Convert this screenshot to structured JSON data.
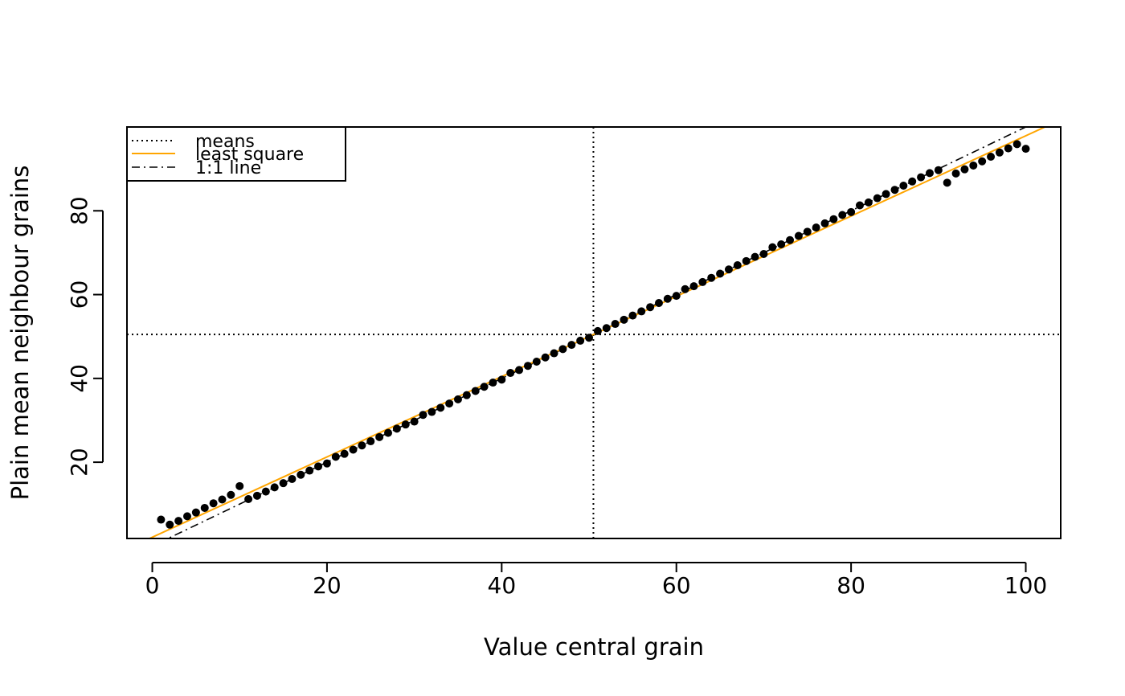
{
  "chart_data": {
    "type": "scatter",
    "xlabel": "Value central grain",
    "ylabel": "Plain mean neighbour grains",
    "xlim": [
      -2.9,
      104.0
    ],
    "ylim": [
      1.8,
      100.0
    ],
    "x_ticks": [
      0,
      20,
      40,
      60,
      80,
      100
    ],
    "y_ticks": [
      20,
      40,
      60,
      80
    ],
    "grid": false,
    "legend": {
      "position": "top-left",
      "items": [
        {
          "label": "means",
          "style": "dotted",
          "color": "#000000"
        },
        {
          "label": "least square",
          "style": "solid",
          "color": "#FFA500"
        },
        {
          "label": "1:1 line",
          "style": "dashdot",
          "color": "#000000"
        }
      ]
    },
    "colors": {
      "points": "#000000",
      "least_square": "#FFA500",
      "means": "#000000",
      "identity": "#000000"
    },
    "means": {
      "x": 50.5,
      "y": 50.5
    },
    "least_square": {
      "intercept": 2.1,
      "slope": 0.958
    },
    "identity_line": {
      "intercept": 0,
      "slope": 1
    },
    "points": [
      [
        1,
        6.3
      ],
      [
        2,
        5.1
      ],
      [
        3,
        6.0
      ],
      [
        4,
        7.1
      ],
      [
        5,
        8.0
      ],
      [
        6,
        9.1
      ],
      [
        7,
        10.2
      ],
      [
        8,
        11.1
      ],
      [
        9,
        12.2
      ],
      [
        10,
        14.3
      ],
      [
        11,
        11.2
      ],
      [
        12,
        12.0
      ],
      [
        13,
        13.0
      ],
      [
        14,
        14.0
      ],
      [
        15,
        15.0
      ],
      [
        16,
        16.0
      ],
      [
        17,
        17.0
      ],
      [
        18,
        18.0
      ],
      [
        19,
        19.0
      ],
      [
        20,
        19.7
      ],
      [
        21,
        21.3
      ],
      [
        22,
        22.0
      ],
      [
        23,
        23.0
      ],
      [
        24,
        24.0
      ],
      [
        25,
        25.0
      ],
      [
        26,
        26.0
      ],
      [
        27,
        27.0
      ],
      [
        28,
        28.0
      ],
      [
        29,
        29.0
      ],
      [
        30,
        29.7
      ],
      [
        31,
        31.3
      ],
      [
        32,
        32.0
      ],
      [
        33,
        33.0
      ],
      [
        34,
        34.0
      ],
      [
        35,
        35.0
      ],
      [
        36,
        36.0
      ],
      [
        37,
        37.0
      ],
      [
        38,
        38.0
      ],
      [
        39,
        39.0
      ],
      [
        40,
        39.7
      ],
      [
        41,
        41.3
      ],
      [
        42,
        42.0
      ],
      [
        43,
        43.0
      ],
      [
        44,
        44.0
      ],
      [
        45,
        45.0
      ],
      [
        46,
        46.0
      ],
      [
        47,
        47.0
      ],
      [
        48,
        48.0
      ],
      [
        49,
        49.0
      ],
      [
        50,
        49.7
      ],
      [
        51,
        51.3
      ],
      [
        52,
        52.0
      ],
      [
        53,
        53.0
      ],
      [
        54,
        54.0
      ],
      [
        55,
        55.0
      ],
      [
        56,
        56.0
      ],
      [
        57,
        57.0
      ],
      [
        58,
        58.0
      ],
      [
        59,
        59.0
      ],
      [
        60,
        59.7
      ],
      [
        61,
        61.3
      ],
      [
        62,
        62.0
      ],
      [
        63,
        63.0
      ],
      [
        64,
        64.0
      ],
      [
        65,
        65.0
      ],
      [
        66,
        66.0
      ],
      [
        67,
        67.0
      ],
      [
        68,
        68.0
      ],
      [
        69,
        69.0
      ],
      [
        70,
        69.7
      ],
      [
        71,
        71.3
      ],
      [
        72,
        72.0
      ],
      [
        73,
        73.0
      ],
      [
        74,
        74.0
      ],
      [
        75,
        75.0
      ],
      [
        76,
        76.0
      ],
      [
        77,
        77.0
      ],
      [
        78,
        78.0
      ],
      [
        79,
        79.0
      ],
      [
        80,
        79.7
      ],
      [
        81,
        81.3
      ],
      [
        82,
        82.0
      ],
      [
        83,
        83.0
      ],
      [
        84,
        84.0
      ],
      [
        85,
        85.0
      ],
      [
        86,
        86.0
      ],
      [
        87,
        87.0
      ],
      [
        88,
        88.0
      ],
      [
        89,
        89.0
      ],
      [
        90,
        89.7
      ],
      [
        91,
        86.7
      ],
      [
        92,
        88.9
      ],
      [
        93,
        89.9
      ],
      [
        94,
        90.8
      ],
      [
        95,
        91.8
      ],
      [
        96,
        92.9
      ],
      [
        97,
        93.9
      ],
      [
        98,
        94.9
      ],
      [
        99,
        95.9
      ],
      [
        100,
        94.8
      ]
    ]
  }
}
